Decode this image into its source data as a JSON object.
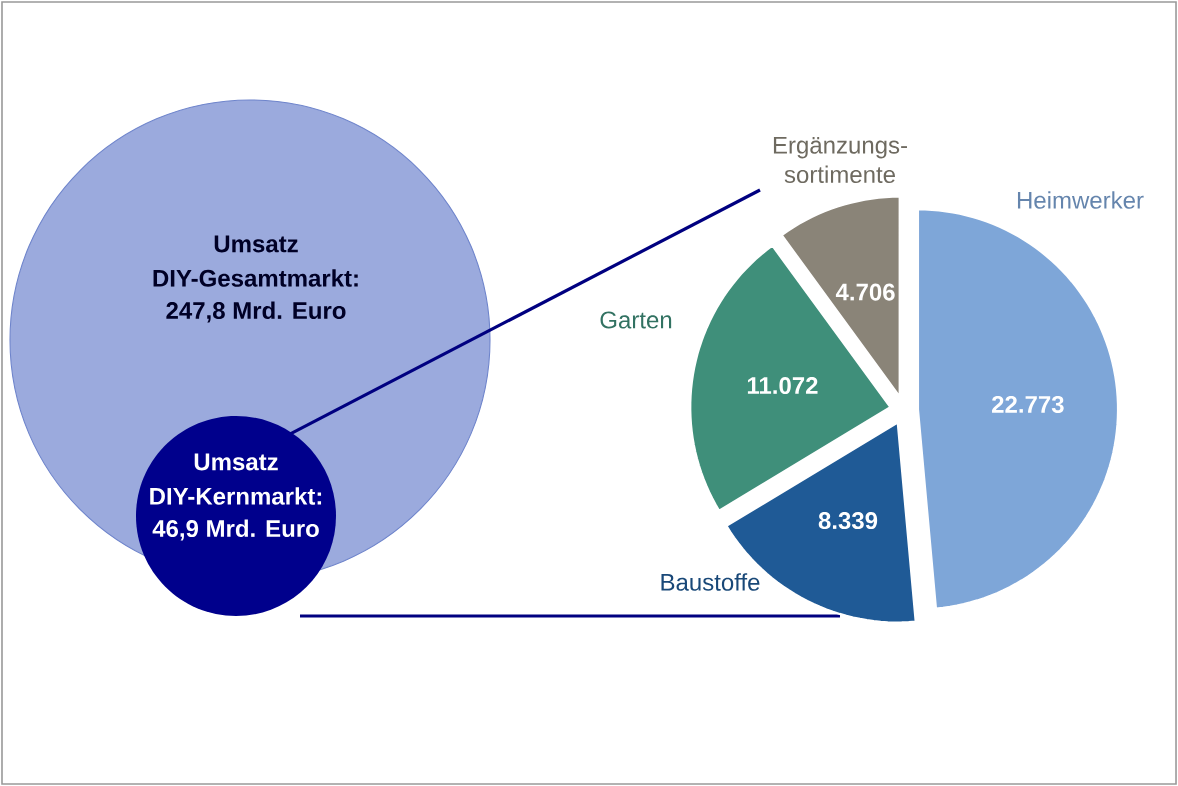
{
  "chart_data": [
    {
      "type": "other",
      "annotations": [
        "Umsatz",
        "DIY-Gesamtmarkt:",
        "247,8 Mrd. Euro",
        "Umsatz",
        "DIY-Kernmarkt:",
        "46,9 Mrd. Euro"
      ]
    },
    {
      "type": "pie",
      "categories": [
        "Heimwerker",
        "Baustoffe",
        "Garten",
        "Ergänzungs-sortimente"
      ],
      "values": [
        22773,
        8339,
        11072,
        4706
      ],
      "value_labels": [
        "22.773",
        "8.339",
        "11.072",
        "4.706"
      ],
      "colors": [
        "#7ea6d8",
        "#1f5a96",
        "#3f8f7a",
        "#8a8478"
      ]
    }
  ]
}
